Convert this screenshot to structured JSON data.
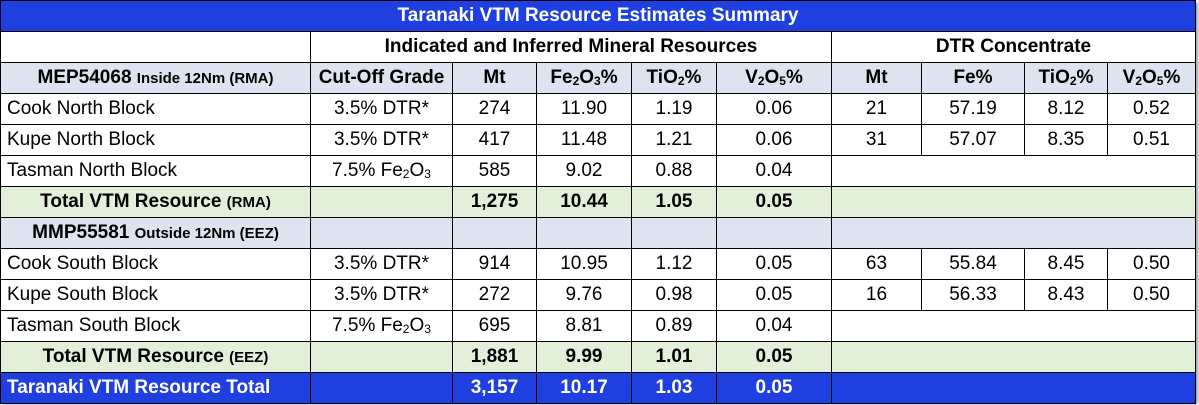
{
  "title": "Taranaki VTM Resource Estimates Summary",
  "group_headers": {
    "mineral_resources": "Indicated and Inferred Mineral Resources",
    "dtr_concentrate": "DTR Concentrate"
  },
  "column_headers": {
    "cutoff": "Cut-Off Grade",
    "mt": "Mt",
    "fe2o3_pre": "Fe",
    "fe2o3_s1": "2",
    "fe2o3_mid": "O",
    "fe2o3_s2": "3",
    "fe2o3_post": "%",
    "tio2_pre": "TiO",
    "tio2_s": "2",
    "tio2_post": "%",
    "v2o5_pre": "V",
    "v2o5_s1": "2",
    "v2o5_mid": "O",
    "v2o5_s2": "5",
    "v2o5_post": "%",
    "dtr_mt": "Mt",
    "dtr_fe": "Fe%",
    "dtr_tio2_pre": "TiO",
    "dtr_tio2_s": "2",
    "dtr_tio2_post": "%",
    "dtr_v2o5_pre": "V",
    "dtr_v2o5_s1": "2",
    "dtr_v2o5_mid": "O",
    "dtr_v2o5_s2": "5",
    "dtr_v2o5_post": "%"
  },
  "section1": {
    "permit": "MEP54068",
    "permit_note": "Inside 12Nm (RMA)",
    "rows": [
      {
        "name": "Cook North Block",
        "cutoff": "3.5% DTR*",
        "mt": "274",
        "fe2o3": "11.90",
        "tio2": "1.19",
        "v2o5": "0.06",
        "dtr_mt": "21",
        "dtr_fe": "57.19",
        "dtr_tio2": "8.12",
        "dtr_v2o5": "0.52"
      },
      {
        "name": "Kupe North Block",
        "cutoff": "3.5% DTR*",
        "mt": "417",
        "fe2o3": "11.48",
        "tio2": "1.21",
        "v2o5": "0.06",
        "dtr_mt": "31",
        "dtr_fe": "57.07",
        "dtr_tio2": "8.35",
        "dtr_v2o5": "0.51"
      },
      {
        "name": "Tasman North Block",
        "cutoff_pre": "7.5% Fe",
        "cutoff_s1": "2",
        "cutoff_mid": "O",
        "cutoff_s2": "3",
        "mt": "585",
        "fe2o3": "9.02",
        "tio2": "0.88",
        "v2o5": "0.04"
      }
    ],
    "total": {
      "label": "Total VTM Resource",
      "note": "(RMA)",
      "mt": "1,275",
      "fe2o3": "10.44",
      "tio2": "1.05",
      "v2o5": "0.05"
    }
  },
  "section2": {
    "permit": "MMP55581",
    "permit_note": "Outside 12Nm (EEZ)",
    "rows": [
      {
        "name": "Cook South Block",
        "cutoff": "3.5% DTR*",
        "mt": "914",
        "fe2o3": "10.95",
        "tio2": "1.12",
        "v2o5": "0.05",
        "dtr_mt": "63",
        "dtr_fe": "55.84",
        "dtr_tio2": "8.45",
        "dtr_v2o5": "0.50"
      },
      {
        "name": "Kupe South Block",
        "cutoff": "3.5% DTR*",
        "mt": "272",
        "fe2o3": "9.76",
        "tio2": "0.98",
        "v2o5": "0.05",
        "dtr_mt": "16",
        "dtr_fe": "56.33",
        "dtr_tio2": "8.43",
        "dtr_v2o5": "0.50"
      },
      {
        "name": "Tasman South Block",
        "cutoff_pre": "7.5% Fe",
        "cutoff_s1": "2",
        "cutoff_mid": "O",
        "cutoff_s2": "3",
        "mt": "695",
        "fe2o3": "8.81",
        "tio2": "0.89",
        "v2o5": "0.04"
      }
    ],
    "total": {
      "label": "Total VTM Resource",
      "note": "(EEZ)",
      "mt": "1,881",
      "fe2o3": "9.99",
      "tio2": "1.01",
      "v2o5": "0.05"
    }
  },
  "grand_total": {
    "label": "Taranaki VTM Resource Total",
    "mt": "3,157",
    "fe2o3": "10.17",
    "tio2": "1.03",
    "v2o5": "0.05"
  },
  "colors": {
    "title_bg": "#1f3fe0",
    "total_bg": "#e2efd9",
    "section_bg": "#dde4ef"
  }
}
